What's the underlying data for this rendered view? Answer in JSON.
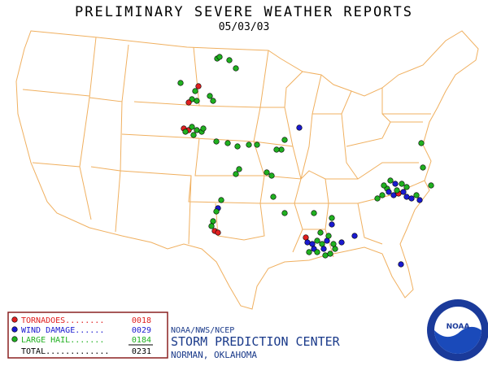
{
  "header": {
    "title": "PRELIMINARY SEVERE WEATHER REPORTS",
    "date": "05/03/03"
  },
  "legend": {
    "items": [
      {
        "label": "TORNADOES........",
        "count": "0018",
        "color": "#e02020"
      },
      {
        "label": "WIND DAMAGE......",
        "count": "0029",
        "color": "#1a1ad0"
      },
      {
        "label": "LARGE HAIL.......",
        "count": "0184",
        "color": "#20b020"
      }
    ],
    "total": {
      "label": "TOTAL.............",
      "count": "0231"
    }
  },
  "footer": {
    "agency": "NOAA/NWS/NCEP",
    "center": "STORM PREDICTION CENTER",
    "location": "NORMAN, OKLAHOMA"
  },
  "logo": {
    "label": "NOAA"
  }
}
